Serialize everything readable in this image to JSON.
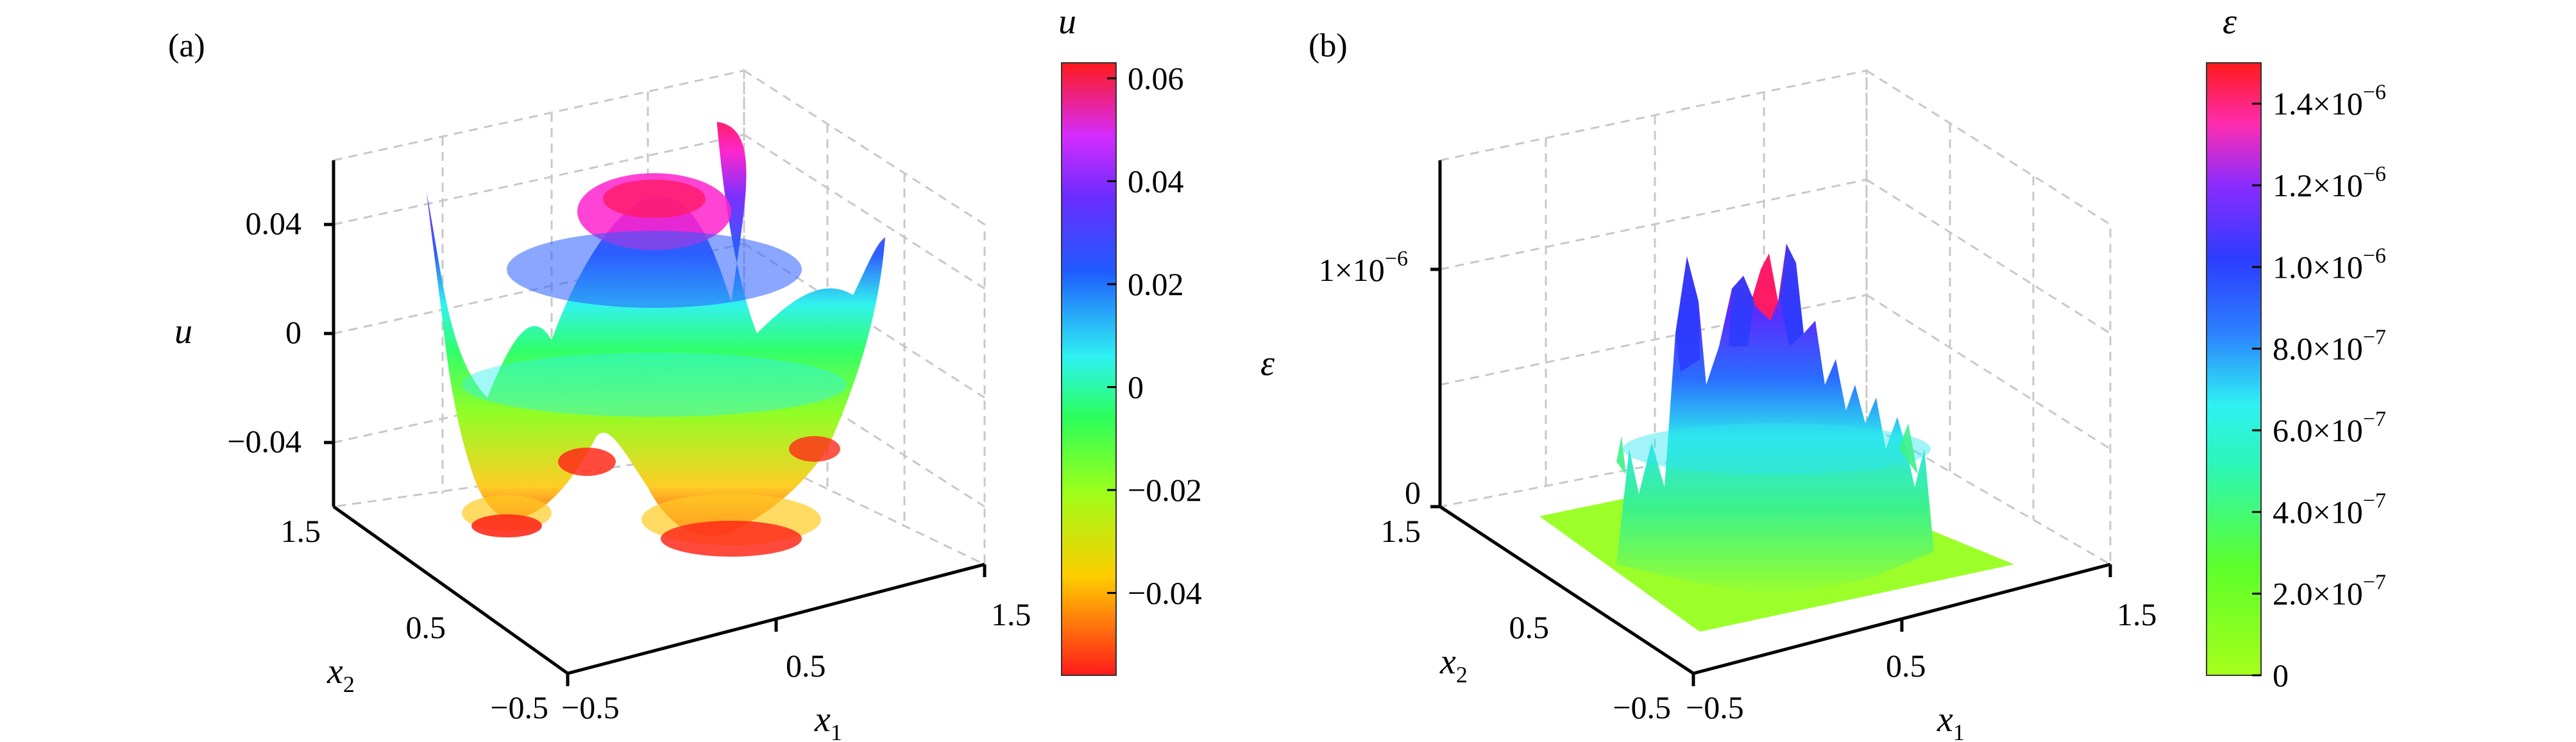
{
  "chart_data": [
    {
      "panel": "(a)",
      "type": "surface",
      "zlabel": "u",
      "xlabel": "x",
      "xlabel_sub": "1",
      "ylabel": "x",
      "ylabel_sub": "2",
      "x_ticks": [
        "−0.5",
        "0.5",
        "1.5"
      ],
      "y_ticks": [
        "−0.5",
        "0.5",
        "1.5"
      ],
      "z_ticks": [
        "−0.04",
        "0",
        "0.04"
      ],
      "xlim": [
        -0.5,
        1.5
      ],
      "ylim": [
        -0.5,
        1.5
      ],
      "zlim": [
        -0.06,
        0.06
      ],
      "colorbar": {
        "title": "u",
        "ticks": [
          "0.06",
          "0.04",
          "0.02",
          "0",
          "−0.02",
          "−0.04"
        ],
        "tick_values": [
          0.06,
          0.04,
          0.02,
          0,
          -0.02,
          -0.04
        ],
        "range": [
          -0.056,
          0.063
        ]
      },
      "grid": true
    },
    {
      "panel": "(b)",
      "type": "surface",
      "zlabel": "ε",
      "xlabel": "x",
      "xlabel_sub": "1",
      "ylabel": "x",
      "ylabel_sub": "2",
      "x_ticks": [
        "−0.5",
        "0.5",
        "1.5"
      ],
      "y_ticks": [
        "−0.5",
        "0.5",
        "1.5"
      ],
      "z_ticks": [
        {
          "label": "0",
          "value": 0
        },
        {
          "label": "1×10",
          "exp": "−6",
          "value": 1e-06
        }
      ],
      "xlim": [
        -0.5,
        1.5
      ],
      "ylim": [
        -0.5,
        1.5
      ],
      "zlim": [
        0,
        1.5e-06
      ],
      "colorbar": {
        "title": "ε",
        "ticks": [
          {
            "label": "1.4×10",
            "exp": "−6",
            "value": 1.4e-06
          },
          {
            "label": "1.2×10",
            "exp": "−6",
            "value": 1.2e-06
          },
          {
            "label": "1.0×10",
            "exp": "−6",
            "value": 1e-06
          },
          {
            "label": "8.0×10",
            "exp": "−7",
            "value": 8e-07
          },
          {
            "label": "6.0×10",
            "exp": "−7",
            "value": 6e-07
          },
          {
            "label": "4.0×10",
            "exp": "−7",
            "value": 4e-07
          },
          {
            "label": "2.0×10",
            "exp": "−7",
            "value": 2e-07
          },
          {
            "label": "0",
            "exp": "",
            "value": 0
          }
        ],
        "range": [
          0,
          1.5e-06
        ]
      },
      "grid": true
    }
  ]
}
